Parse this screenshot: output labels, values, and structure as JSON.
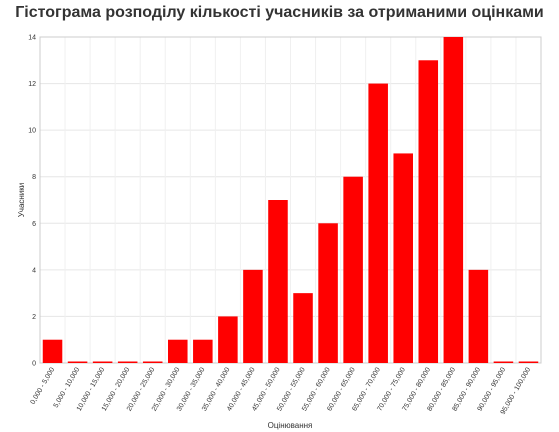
{
  "chart_data": {
    "type": "bar",
    "title": "Гістограма розподілу кількості учасників за отриманими оцінками",
    "xlabel": "Оцінювання",
    "ylabel": "Учасники",
    "ylim": [
      0,
      14
    ],
    "y_ticks": [
      "0",
      "2",
      "4",
      "6",
      "8",
      "10",
      "12",
      "14"
    ],
    "grid": true,
    "bar_color": "#ff0000",
    "categories": [
      "0,000 - 5,000",
      "5,000 - 10,000",
      "10,000 - 15,000",
      "15,000 - 20,000",
      "20,000 - 25,000",
      "25,000 - 30,000",
      "30,000 - 35,000",
      "35,000 - 40,000",
      "40,000 - 45,000",
      "45,000 - 50,000",
      "50,000 - 55,000",
      "55,000 - 60,000",
      "60,000 - 65,000",
      "65,000 - 70,000",
      "70,000 - 75,000",
      "75,000 - 80,000",
      "80,000 - 85,000",
      "85,000 - 90,000",
      "90,000 - 95,000",
      "95,000 - 100,000"
    ],
    "values": [
      1,
      0,
      0,
      0,
      0,
      1,
      1,
      2,
      4,
      7,
      3,
      6,
      8,
      12,
      9,
      13,
      14,
      4,
      0,
      0
    ]
  }
}
